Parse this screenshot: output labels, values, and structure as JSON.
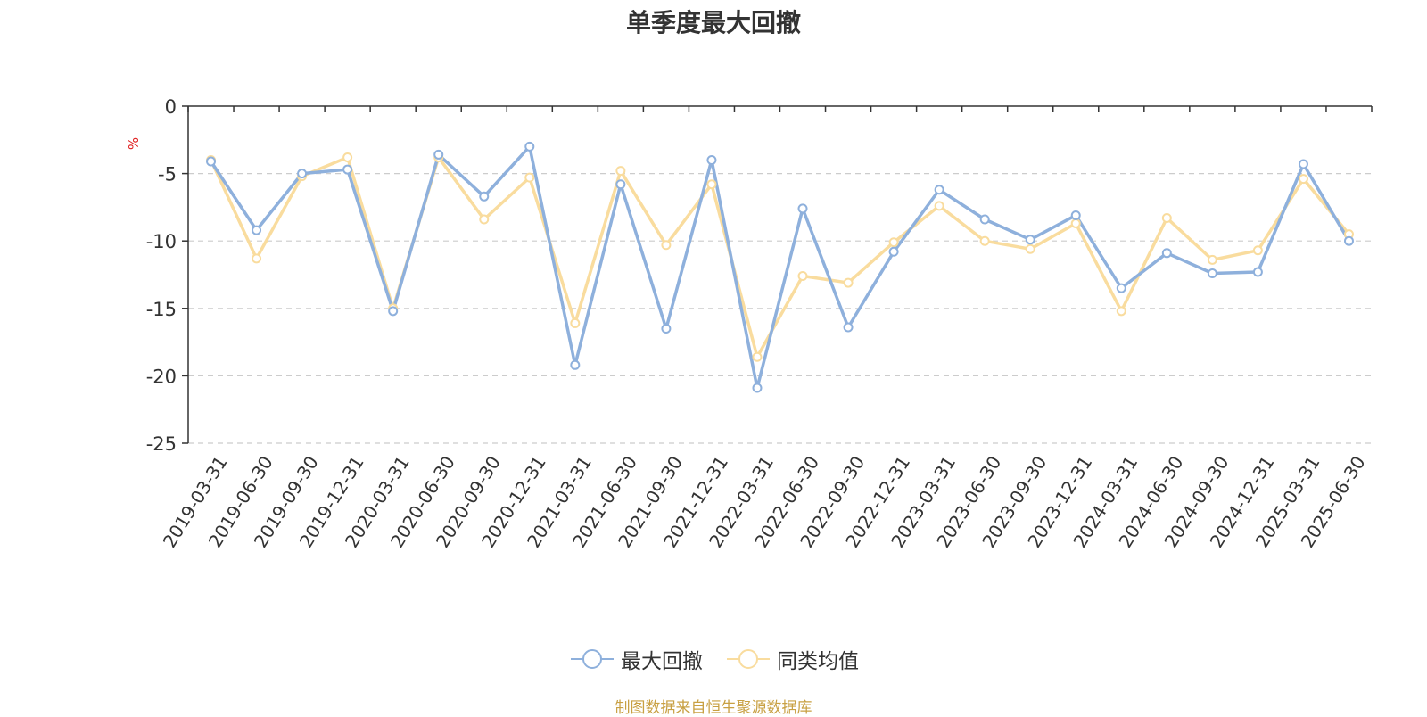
{
  "title": "单季度最大回撤",
  "unit": "%",
  "source": "制图数据来自恒生聚源数据库",
  "legend": {
    "series1": "最大回撤",
    "series2": "同类均值"
  },
  "colors": {
    "series1": "#8eb0dc",
    "series2": "#f9dc9e",
    "axis": "#333333",
    "grid": "#cccccc"
  },
  "chart_data": {
    "type": "line",
    "x": [
      "2019-03-31",
      "2019-06-30",
      "2019-09-30",
      "2019-12-31",
      "2020-03-31",
      "2020-06-30",
      "2020-09-30",
      "2020-12-31",
      "2021-03-31",
      "2021-06-30",
      "2021-09-30",
      "2021-12-31",
      "2022-03-31",
      "2022-06-30",
      "2022-09-30",
      "2022-12-31",
      "2023-03-31",
      "2023-06-30",
      "2023-09-30",
      "2023-12-31",
      "2024-03-31",
      "2024-06-30",
      "2024-09-30",
      "2024-12-31",
      "2025-03-31",
      "2025-06-30"
    ],
    "series": [
      {
        "name": "最大回撤",
        "values": [
          -4.1,
          -9.2,
          -5.0,
          -4.7,
          -15.2,
          -3.6,
          -6.7,
          -3.0,
          -19.2,
          -5.8,
          -16.5,
          -4.0,
          -20.9,
          -7.6,
          -16.4,
          -10.8,
          -6.2,
          -8.4,
          -9.9,
          -8.1,
          -13.5,
          -10.9,
          -12.4,
          -12.3,
          -4.3,
          -10.0
        ]
      },
      {
        "name": "同类均值",
        "values": [
          -4.0,
          -11.3,
          -5.2,
          -3.8,
          -15.0,
          -3.8,
          -8.4,
          -5.3,
          -16.1,
          -4.8,
          -10.3,
          -5.8,
          -18.6,
          -12.6,
          -13.1,
          -10.1,
          -7.4,
          -10.0,
          -10.6,
          -8.7,
          -15.2,
          -8.3,
          -11.4,
          -10.7,
          -5.4,
          -9.5
        ]
      }
    ],
    "yticks": [
      0,
      -5,
      -10,
      -15,
      -20,
      -25
    ],
    "ylim": [
      -25,
      0
    ],
    "grid": true,
    "legend_position": "bottom"
  }
}
